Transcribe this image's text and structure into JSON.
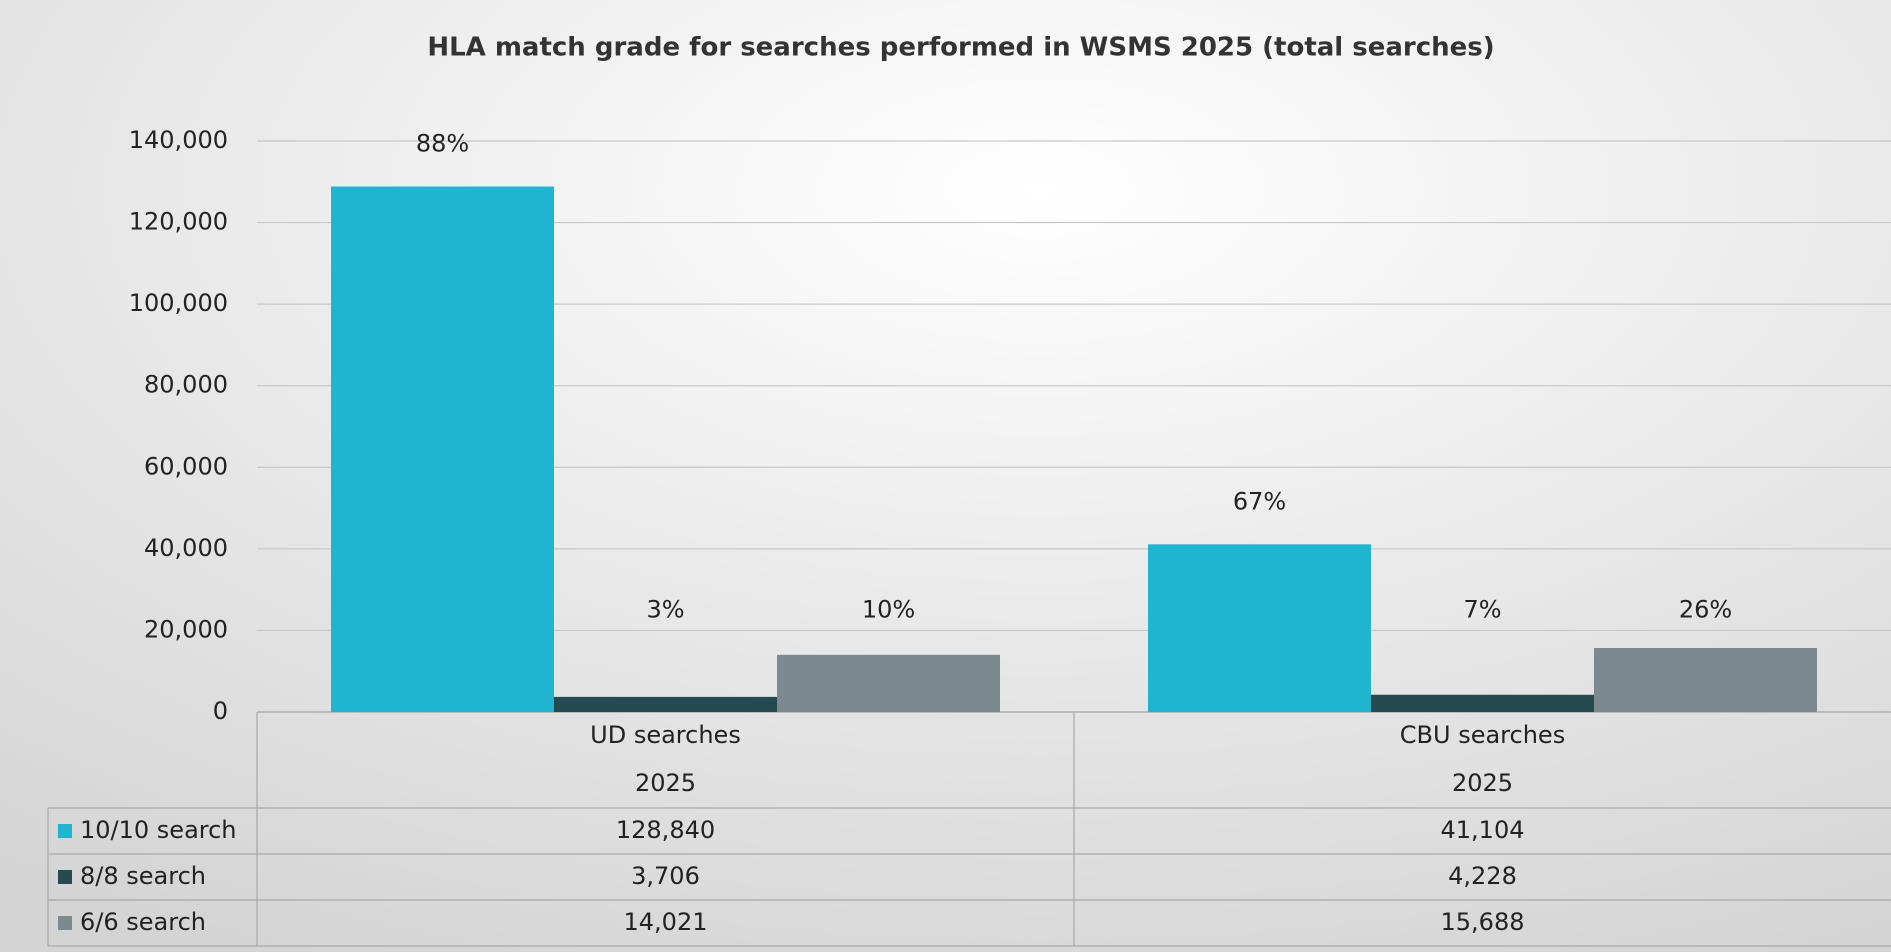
{
  "chart_data": {
    "type": "bar",
    "title": "HLA match grade for searches performed in WSMS 2025 (total searches)",
    "categories": [
      "UD searches",
      "CBU searches"
    ],
    "category_years": [
      "2025",
      "2025"
    ],
    "series": [
      {
        "name": "10/10 search",
        "color": "#1fb5d0",
        "values": [
          128840,
          41104
        ],
        "value_labels": [
          "128,840",
          "41,104"
        ],
        "shares": [
          88,
          67
        ],
        "share_labels": [
          "88%",
          "67%"
        ]
      },
      {
        "name": "8/8 search",
        "color": "#264a52",
        "values": [
          3706,
          4228
        ],
        "value_labels": [
          "3,706",
          "4,228"
        ],
        "shares": [
          3,
          7
        ],
        "share_labels": [
          "3%",
          "7%"
        ]
      },
      {
        "name": "6/6 search",
        "color": "#7a8a8e",
        "values": [
          14021,
          15688
        ],
        "value_labels": [
          "14,021",
          "15,688"
        ],
        "shares": [
          10,
          26
        ],
        "share_labels": [
          "10%",
          "26%"
        ]
      }
    ],
    "ylim": [
      0,
      140000
    ],
    "yticks": [
      0,
      {
        "value": 20000,
        "label": "20,000"
      },
      {
        "value": 40000,
        "label": "40,000"
      },
      {
        "value": 60000,
        "label": "60,000"
      },
      {
        "value": 80000,
        "label": "80,000"
      },
      {
        "value": 100000,
        "label": "100,000"
      },
      {
        "value": 120000,
        "label": "120,000"
      },
      {
        "value": 140000,
        "label": "140,000"
      }
    ],
    "grid": true
  }
}
